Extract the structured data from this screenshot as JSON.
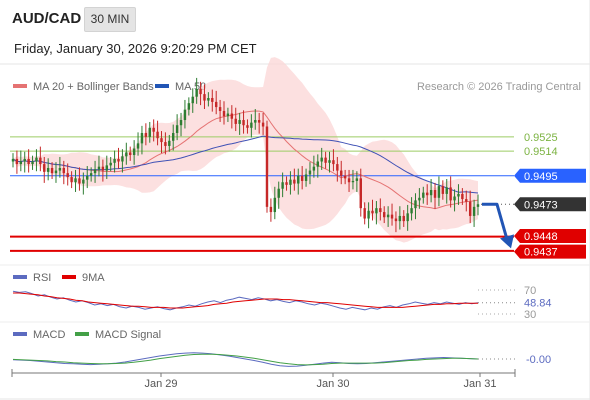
{
  "header": {
    "symbol": "AUD/CAD",
    "interval": "30 MIN",
    "datetime": "Friday, January 30, 2026 9:20:29 PM CET"
  },
  "colors": {
    "candle_up": "#2e7d32",
    "candle_down": "#c62828",
    "ma20": "#e57373",
    "bollinger_fill": "#fbd5d5",
    "ma50": "#3f51b5",
    "resistance_line": "#9ccc65",
    "current_line": "#2962ff",
    "support_line": "#e00000",
    "rsi": "#5c6bc0",
    "rsi_ma": "#e00000",
    "macd": "#5c6bc0",
    "macd_signal": "#43a047",
    "forecast_arrow": "#2155b5",
    "badge_current": "#333333",
    "badge_blue": "#2962ff",
    "badge_red": "#e00000"
  },
  "chart_data": [
    {
      "type": "candlestick",
      "name": "price",
      "legend": [
        {
          "label": "MA 20 + Bollinger Bands",
          "color": "#e57373"
        },
        {
          "label": "MA 50",
          "color": "#2155b5"
        }
      ],
      "credit": "Research © 2026 Trading Central",
      "x_ticks": [
        "Jan 29",
        "Jan 30",
        "Jan 31"
      ],
      "ylim": [
        0.943,
        0.9555
      ],
      "levels": [
        {
          "value": 0.9525,
          "label": "0.9525",
          "kind": "resistance"
        },
        {
          "value": 0.9514,
          "label": "0.9514",
          "kind": "resistance"
        },
        {
          "value": 0.9495,
          "label": "0.9495",
          "kind": "pivot"
        },
        {
          "value": 0.9448,
          "label": "0.9448",
          "kind": "support"
        },
        {
          "value": 0.9437,
          "label": "0.9437",
          "kind": "support"
        }
      ],
      "current_price": {
        "value": 0.9473,
        "label": "0.9473"
      },
      "forecast": {
        "from": 0.9473,
        "to": 0.9442
      },
      "closes": [
        0.9508,
        0.9504,
        0.9506,
        0.9508,
        0.9504,
        0.9506,
        0.9509,
        0.9504,
        0.9498,
        0.9501,
        0.9497,
        0.9499,
        0.9501,
        0.9497,
        0.9494,
        0.949,
        0.9493,
        0.9489,
        0.9492,
        0.9495,
        0.9497,
        0.95,
        0.9502,
        0.9499,
        0.9503,
        0.9505,
        0.9508,
        0.9506,
        0.951,
        0.9513,
        0.9511,
        0.9516,
        0.952,
        0.9528,
        0.9525,
        0.9532,
        0.9529,
        0.9524,
        0.9521,
        0.9518,
        0.9522,
        0.9528,
        0.9534,
        0.9538,
        0.9546,
        0.9551,
        0.9556,
        0.9562,
        0.9558,
        0.9553,
        0.9555,
        0.9552,
        0.9548,
        0.9545,
        0.9541,
        0.9543,
        0.9539,
        0.9535,
        0.9538,
        0.9534,
        0.9532,
        0.9536,
        0.9538,
        0.9536,
        0.9533,
        0.9471,
        0.9467,
        0.9478,
        0.9485,
        0.949,
        0.9488,
        0.9492,
        0.9489,
        0.9495,
        0.9491,
        0.9496,
        0.9499,
        0.9502,
        0.9506,
        0.9509,
        0.9505,
        0.9507,
        0.9504,
        0.9499,
        0.9495,
        0.9493,
        0.949,
        0.9491,
        0.9493,
        0.947,
        0.9462,
        0.9468,
        0.9466,
        0.947,
        0.9467,
        0.9463,
        0.9465,
        0.9462,
        0.946,
        0.9464,
        0.946,
        0.9466,
        0.947,
        0.9476,
        0.9478,
        0.9482,
        0.948,
        0.9484,
        0.9478,
        0.9487,
        0.9481,
        0.9486,
        0.9476,
        0.9479,
        0.9481,
        0.9477,
        0.9475,
        0.9464,
        0.9471,
        0.9473
      ]
    },
    {
      "type": "line",
      "name": "rsi",
      "legend": [
        {
          "label": "RSI",
          "color": "#5c6bc0"
        },
        {
          "label": "9MA",
          "color": "#e00000"
        }
      ],
      "ylim": [
        25,
        75
      ],
      "y_ticks": [
        {
          "value": 70,
          "label": "70"
        },
        {
          "value": 30,
          "label": "30"
        }
      ],
      "current": {
        "value": 48.84,
        "label": "48.84"
      },
      "series": [
        {
          "values": [
            68,
            66,
            67,
            64,
            60,
            62,
            58,
            55,
            57,
            53,
            50,
            52,
            49,
            45,
            47,
            44,
            46,
            42,
            40,
            43,
            41,
            38,
            40,
            42,
            39,
            37,
            40,
            42,
            45,
            43,
            47,
            50,
            52,
            49,
            53,
            55,
            58,
            56,
            54,
            57,
            55,
            52,
            54,
            51,
            49,
            52,
            50,
            47,
            45,
            48,
            46,
            43,
            40,
            38,
            41,
            39,
            37,
            40,
            38,
            42,
            44,
            41,
            45,
            47,
            50,
            48,
            46,
            49,
            47,
            50,
            48,
            46,
            49,
            47,
            48.84
          ]
        },
        {
          "values": [
            65,
            65,
            64,
            63,
            62,
            60,
            59,
            57,
            56,
            55,
            53,
            52,
            50,
            49,
            48,
            47,
            46,
            45,
            44,
            43,
            43,
            42,
            41,
            41,
            41,
            40,
            40,
            40,
            41,
            42,
            43,
            44,
            46,
            47,
            48,
            50,
            51,
            52,
            53,
            54,
            55,
            55,
            55,
            54,
            54,
            53,
            52,
            51,
            50,
            49,
            49,
            48,
            47,
            46,
            45,
            44,
            43,
            42,
            41,
            41,
            41,
            41,
            41,
            42,
            43,
            44,
            45,
            46,
            46,
            47,
            47,
            48,
            48,
            48,
            48
          ]
        }
      ]
    },
    {
      "type": "line",
      "name": "macd",
      "legend": [
        {
          "label": "MACD",
          "color": "#5c6bc0"
        },
        {
          "label": "MACD Signal",
          "color": "#43a047"
        }
      ],
      "ylim": [
        -0.0035,
        0.0035
      ],
      "current": {
        "value": -0.0,
        "label": "-0.00"
      },
      "series": [
        {
          "values": [
            -0.0002,
            -0.0003,
            -0.0004,
            -0.0006,
            -0.0008,
            -0.001,
            -0.0012,
            -0.0013,
            -0.0014,
            -0.0015,
            -0.0014,
            -0.0013,
            -0.0011,
            -0.0008,
            -0.0004,
            0.0,
            0.0004,
            0.0008,
            0.0011,
            0.0014,
            0.0016,
            0.0017,
            0.0016,
            0.0014,
            0.0011,
            0.0008,
            0.0004,
            0.0,
            -0.0004,
            -0.0009,
            -0.0014,
            -0.0018,
            -0.002,
            -0.0019,
            -0.0017,
            -0.0014,
            -0.0011,
            -0.0009,
            -0.001,
            -0.0012,
            -0.0013,
            -0.0012,
            -0.001,
            -0.0008,
            -0.0006,
            -0.0004,
            -0.0002,
            0.0,
            0.0002,
            0.0003,
            0.0004,
            0.0003,
            0.0002,
            0.0001,
            0.0
          ]
        },
        {
          "values": [
            -0.0001,
            -0.0002,
            -0.0003,
            -0.0004,
            -0.0005,
            -0.0007,
            -0.0008,
            -0.001,
            -0.0011,
            -0.0012,
            -0.0013,
            -0.0013,
            -0.0012,
            -0.0011,
            -0.0009,
            -0.0006,
            -0.0003,
            0.0001,
            0.0004,
            0.0007,
            0.001,
            0.0012,
            0.0013,
            0.0013,
            0.0012,
            0.001,
            0.0008,
            0.0005,
            0.0002,
            -0.0002,
            -0.0006,
            -0.001,
            -0.0013,
            -0.0015,
            -0.0016,
            -0.0015,
            -0.0014,
            -0.0012,
            -0.0011,
            -0.0011,
            -0.0011,
            -0.0011,
            -0.0011,
            -0.001,
            -0.0008,
            -0.0006,
            -0.0004,
            -0.0003,
            -0.0001,
            0.0,
            0.0001,
            0.0002,
            0.0002,
            0.0001,
            0.0
          ]
        }
      ]
    }
  ]
}
